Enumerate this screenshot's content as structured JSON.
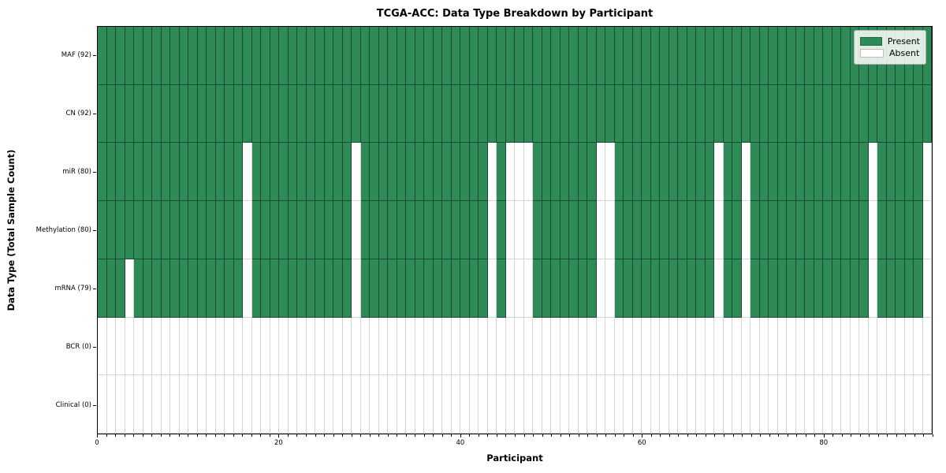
{
  "figure": {
    "title": "TCGA-ACC: Data Type Breakdown by Participant",
    "xlabel": "Participant",
    "ylabel": "Data Type (Total Sample Count)"
  },
  "legend": {
    "position": "upper right",
    "items": [
      {
        "name": "present",
        "label": "Present",
        "color": "#2e8b57"
      },
      {
        "name": "absent",
        "label": "Absent",
        "color": "#ffffff"
      }
    ]
  },
  "chart_data": {
    "type": "heatmap",
    "title": "TCGA-ACC: Data Type Breakdown by Participant",
    "xlabel": "Participant",
    "ylabel": "Data Type (Total Sample Count)",
    "n_participants": 92,
    "x_range": [
      0,
      92
    ],
    "x_ticks": [
      0,
      20,
      40,
      60,
      80
    ],
    "legend": [
      "Present",
      "Absent"
    ],
    "legend_position": "upper right",
    "grid": "cell-edges",
    "colors": {
      "present": "#2e8b57",
      "absent": "#ffffff"
    },
    "rows": [
      {
        "label": "MAF (92)",
        "data_type": "MAF",
        "present_count": 92,
        "absent_participants": []
      },
      {
        "label": "CN (92)",
        "data_type": "CN",
        "present_count": 92,
        "absent_participants": []
      },
      {
        "label": "miR (80)",
        "data_type": "miR",
        "present_count": 80,
        "absent_participants": [
          16,
          28,
          43,
          45,
          46,
          47,
          55,
          56,
          68,
          71,
          85,
          91
        ]
      },
      {
        "label": "Methylation (80)",
        "data_type": "Methylation",
        "present_count": 80,
        "absent_participants": [
          16,
          28,
          43,
          45,
          46,
          47,
          55,
          56,
          68,
          71,
          85,
          91
        ]
      },
      {
        "label": "mRNA (79)",
        "data_type": "mRNA",
        "present_count": 79,
        "absent_participants": [
          3,
          16,
          28,
          43,
          45,
          46,
          47,
          55,
          56,
          68,
          71,
          85,
          91
        ]
      },
      {
        "label": "BCR (0)",
        "data_type": "BCR",
        "present_count": 0,
        "absent_participants": "all"
      },
      {
        "label": "Clinical (0)",
        "data_type": "Clinical",
        "present_count": 0,
        "absent_participants": "all"
      }
    ]
  }
}
